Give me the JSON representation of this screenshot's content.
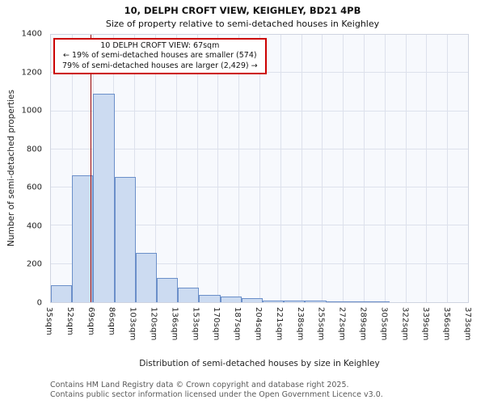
{
  "title": "10, DELPH CROFT VIEW, KEIGHLEY, BD21 4PB",
  "subtitle": "Size of property relative to semi-detached houses in Keighley",
  "annotation": {
    "line1": "10 DELPH CROFT VIEW: 67sqm",
    "line2": "← 19% of semi-detached houses are smaller (574)",
    "line3": "79% of semi-detached houses are larger (2,429) →"
  },
  "footer": {
    "line1": "Contains HM Land Registry data © Crown copyright and database right 2025.",
    "line2": "Contains public sector information licensed under the Open Government Licence v3.0."
  },
  "chart_data": {
    "type": "bar",
    "title": "10, DELPH CROFT VIEW, KEIGHLEY, BD21 4PB",
    "subtitle": "Size of property relative to semi-detached houses in Keighley",
    "xlabel": "Distribution of semi-detached houses by size in Keighley",
    "ylabel": "Number of semi-detached properties",
    "ylim": [
      0,
      1400
    ],
    "ytick_step": 200,
    "grid": true,
    "bin_start": 35,
    "bin_end": 373,
    "bin_labels": [
      "35sqm",
      "52sqm",
      "69sqm",
      "86sqm",
      "103sqm",
      "120sqm",
      "136sqm",
      "153sqm",
      "170sqm",
      "187sqm",
      "204sqm",
      "221sqm",
      "238sqm",
      "255sqm",
      "272sqm",
      "289sqm",
      "305sqm",
      "322sqm",
      "339sqm",
      "356sqm",
      "373sqm"
    ],
    "values": [
      90,
      665,
      1090,
      655,
      260,
      125,
      75,
      40,
      30,
      20,
      10,
      8,
      10,
      5,
      3,
      2,
      0,
      0,
      0,
      0
    ],
    "marker": {
      "value": 67,
      "label": "67sqm",
      "color": "#990000"
    },
    "bar_fill": "#ccdbf1",
    "bar_border": "#6b8fc9"
  }
}
